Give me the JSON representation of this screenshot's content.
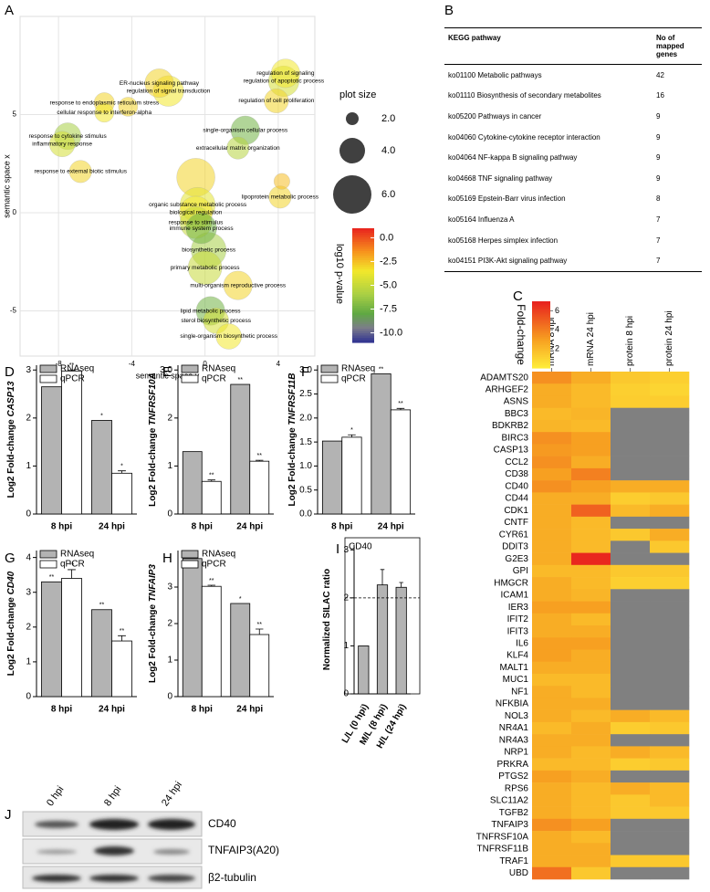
{
  "chart_data": [
    {
      "type": "scatter",
      "panel": "A",
      "xlabel": "semantic space y",
      "ylabel": "semantic space x",
      "xlim": [
        -10.1,
        6
      ],
      "ylim": [
        -7.3,
        10
      ],
      "xticks": [
        -8,
        -4,
        0,
        4
      ],
      "yticks": [
        -5,
        0,
        5
      ],
      "grid": true,
      "x": [
        -2.5,
        -2.0,
        4.4,
        4.3,
        3.9,
        -5.5,
        -5.5,
        -7.5,
        -7.8,
        -6.8,
        2.2,
        1.8,
        4.1,
        -0.4,
        -0.5,
        -0.5,
        -0.2,
        0.2,
        0.0,
        1.8,
        0.3,
        0.6,
        1.3,
        -4.2,
        4.2,
        -0.5
      ],
      "y": [
        6.6,
        6.2,
        7.1,
        6.7,
        5.7,
        5.6,
        5.1,
        3.9,
        3.5,
        2.1,
        4.2,
        3.3,
        0.8,
        0.4,
        0.0,
        -0.5,
        -0.8,
        -1.9,
        -2.8,
        -3.7,
        -5.0,
        -5.5,
        -6.3,
        5.4,
        1.6,
        1.8
      ],
      "sizes": [
        4.5,
        4.8,
        4.5,
        4.8,
        3.8,
        3.2,
        3.0,
        4.2,
        4.0,
        3.5,
        4.5,
        3.5,
        3.5,
        5.5,
        5.2,
        5.0,
        4.8,
        5.5,
        5.3,
        4.5,
        4.5,
        4.0,
        4.0,
        3.0,
        2.5,
        6.0
      ],
      "pvalues": [
        -3,
        -3.5,
        -3.5,
        -4.5,
        -3,
        -3,
        -3.5,
        -6,
        -4.5,
        -3,
        -7.5,
        -5.5,
        -3,
        -4,
        -3.5,
        -5,
        -7.5,
        -6,
        -5,
        -3,
        -7.5,
        -4.5,
        -3.5,
        -3,
        -2.5,
        -3
      ],
      "labels": [
        "ER-nucleus signaling pathway",
        "regulation of signal transduction",
        "regulation of signaling",
        "regulation of apoptotic process",
        "regulation of cell proliferation",
        "response to endoplasmic reticulum stress",
        "cellular response to interferon-alpha",
        "response to cytokine stimulus",
        "inflammatory response",
        "response to external biotic stimulus",
        "single-organism cellular process",
        "extracellular matrix organization",
        "lipoprotein metabolic process",
        "organic substance metabolic process",
        "biological regulation",
        "response to stimulus",
        "immune system process",
        "biosynthetic process",
        "primary metabolic process",
        "multi-organism reproductive process",
        "lipid metabolic process",
        "sterol biosynthetic process",
        "single-organism biosynthetic process",
        null,
        null,
        null
      ],
      "size_legend_title": "plot size",
      "size_ticks": [
        {
          "value": 2,
          "label": "2.0"
        },
        {
          "value": 4,
          "label": "4.0"
        },
        {
          "value": 6,
          "label": "6.0"
        }
      ],
      "color_legend_title": "log10 p-value",
      "clim": [
        1,
        -11
      ],
      "cticks": [
        {
          "value": 0,
          "label": "0.0"
        },
        {
          "value": -2.5,
          "label": "-2.5"
        },
        {
          "value": -5,
          "label": "-5.0"
        },
        {
          "value": -7.5,
          "label": "-7.5"
        },
        {
          "value": -10,
          "label": "-10.0"
        }
      ],
      "colorscale": [
        [
          1,
          "#e8211e"
        ],
        [
          -1.5,
          "#f7941d"
        ],
        [
          -3.5,
          "#f2e82b"
        ],
        [
          -6,
          "#a8cf45"
        ],
        [
          -8,
          "#5fa843"
        ],
        [
          -9.5,
          "#7c7c8a"
        ],
        [
          -11,
          "#2e3192"
        ]
      ]
    },
    {
      "type": "heatmap",
      "panel": "C",
      "colorbar_title": "Fold-change",
      "x": [
        "mRNA 8 hpi",
        "mRNA 24 hpi",
        "protein 8 hpi",
        "protein 24 hpi"
      ],
      "y": [
        "ADAMTS20",
        "ARHGEF2",
        "ASNS",
        "BBC3",
        "BDKRB2",
        "BIRC3",
        "CASP13",
        "CCL2",
        "CD38",
        "CD40",
        "CD44",
        "CDK1",
        "CNTF",
        "CYR61",
        "DDIT3",
        "G2E3",
        "GPI",
        "HMGCR",
        "ICAM1",
        "IER3",
        "IFIT2",
        "IFIT3",
        "IL6",
        "KLF4",
        "MALT1",
        "MUC1",
        "NF1",
        "NFKBIA",
        "NOL3",
        "NR4A1",
        "NR4A3",
        "NRP1",
        "PRKRA",
        "PTGS2",
        "RPS6",
        "SLC11A2",
        "TGFB2",
        "TNFAIP3",
        "TNFRSF10A",
        "TNFRSF11B",
        "TRAF1",
        "UBD"
      ],
      "z": [
        [
          3.5,
          2.5,
          1.5,
          1.2
        ],
        [
          2.5,
          2,
          1.2,
          1.0
        ],
        [
          2.5,
          2,
          1.3,
          1.3
        ],
        [
          2,
          2.2,
          null,
          null
        ],
        [
          2.2,
          2,
          null,
          null
        ],
        [
          3.5,
          3,
          null,
          null
        ],
        [
          3.2,
          3,
          null,
          null
        ],
        [
          3.5,
          2.5,
          null,
          null
        ],
        [
          3,
          4,
          null,
          null
        ],
        [
          3.5,
          3,
          2.5,
          2.5
        ],
        [
          2.5,
          2.5,
          1.3,
          1.5
        ],
        [
          2.5,
          5,
          2,
          2.5
        ],
        [
          2.5,
          2,
          null,
          null
        ],
        [
          2.5,
          2,
          1.5,
          2.5
        ],
        [
          2.5,
          2,
          null,
          1.5
        ],
        [
          2.5,
          6.8,
          null,
          null
        ],
        [
          2,
          2,
          1.5,
          1.5
        ],
        [
          2.5,
          2,
          1.2,
          1.2
        ],
        [
          2.5,
          2.2,
          null,
          null
        ],
        [
          3,
          3,
          null,
          null
        ],
        [
          2.5,
          2,
          null,
          null
        ],
        [
          2.5,
          2.5,
          null,
          null
        ],
        [
          3,
          3,
          null,
          null
        ],
        [
          3,
          2.5,
          null,
          null
        ],
        [
          2.5,
          2.5,
          null,
          null
        ],
        [
          2,
          2,
          null,
          null
        ],
        [
          2.5,
          2,
          null,
          null
        ],
        [
          2.5,
          2.5,
          null,
          null
        ],
        [
          2.5,
          2,
          2.5,
          2
        ],
        [
          2,
          2.5,
          1.3,
          1.5
        ],
        [
          2.5,
          2.5,
          null,
          null
        ],
        [
          2.5,
          2,
          2.5,
          2
        ],
        [
          2,
          2,
          1.3,
          1.5
        ],
        [
          3,
          2.5,
          null,
          null
        ],
        [
          2.5,
          2,
          2.5,
          2
        ],
        [
          2.5,
          2,
          1.5,
          2
        ],
        [
          2.5,
          2,
          1.5,
          1.5
        ],
        [
          3.5,
          3,
          null,
          null
        ],
        [
          2.5,
          2,
          null,
          null
        ],
        [
          2.5,
          2.5,
          null,
          null
        ],
        [
          2.5,
          2.5,
          1.5,
          1.5
        ],
        [
          4.5,
          1.5,
          null,
          null
        ]
      ],
      "clim": [
        0,
        7
      ],
      "cticks": [
        2,
        4,
        6
      ],
      "null_color": "#808080",
      "colorscale": [
        [
          0,
          "#ffef3a"
        ],
        [
          3,
          "#f7a021"
        ],
        [
          7,
          "#e8211e"
        ]
      ]
    },
    {
      "type": "bar",
      "panel": "D",
      "ylabel": "Log2 Fold-change",
      "gene": "CASP13",
      "categories": [
        "8 hpi",
        "24 hpi"
      ],
      "ylim": [
        0,
        3.1
      ],
      "yticks": [
        0,
        1,
        2,
        3
      ],
      "series": [
        {
          "name": "RNAseq",
          "color": "#b3b3b3",
          "values": [
            2.65,
            1.95
          ],
          "annotations": [
            "**",
            "*"
          ]
        },
        {
          "name": "qPCR",
          "color": "#ffffff",
          "values": [
            2.98,
            0.85
          ],
          "errors": [
            0.02,
            0.05
          ],
          "annotations": [
            "**",
            "*"
          ]
        }
      ]
    },
    {
      "type": "bar",
      "panel": "E",
      "ylabel": "Log2 Fold-change",
      "gene": "TNFRSF10A",
      "categories": [
        "8 hpi",
        "24 hpi"
      ],
      "ylim": [
        0,
        3.1
      ],
      "yticks": [
        0,
        1,
        2,
        {
          "value": 3,
          "label": "3.0"
        }
      ],
      "series": [
        {
          "name": "RNAseq",
          "color": "#b3b3b3",
          "values": [
            1.3,
            2.7
          ],
          "annotations": [
            null,
            "**"
          ]
        },
        {
          "name": "qPCR",
          "color": "#ffffff",
          "values": [
            0.68,
            1.1
          ],
          "errors": [
            0.03,
            0.02
          ],
          "annotations": [
            "**",
            "**"
          ]
        }
      ]
    },
    {
      "type": "bar",
      "panel": "F",
      "ylabel": "Log2 Fold-change",
      "gene": "TNFRSF11B",
      "categories": [
        "8 hpi",
        "24 hpi"
      ],
      "ylim": [
        0,
        3.1
      ],
      "yticks": [
        {
          "value": 0,
          "label": "0.0"
        },
        {
          "value": 0.5,
          "label": "0.5"
        },
        {
          "value": 1,
          "label": "1.0"
        },
        {
          "value": 1.5,
          "label": "1.5"
        },
        {
          "value": 2,
          "label": "2.0"
        },
        {
          "value": 2.5,
          "label": "2.5"
        },
        {
          "value": 3,
          "label": "3.0"
        }
      ],
      "series": [
        {
          "name": "RNAseq",
          "color": "#b3b3b3",
          "values": [
            1.52,
            2.92
          ],
          "annotations": [
            null,
            "**"
          ]
        },
        {
          "name": "qPCR",
          "color": "#ffffff",
          "values": [
            1.6,
            2.17
          ],
          "errors": [
            0.05,
            0.03
          ],
          "annotations": [
            "*",
            "**"
          ]
        }
      ]
    },
    {
      "type": "bar",
      "panel": "G",
      "ylabel": "Log2 Fold-change",
      "gene": "CD40",
      "categories": [
        "8 hpi",
        "24 hpi"
      ],
      "ylim": [
        0,
        4.2
      ],
      "yticks": [
        0,
        1,
        2,
        3,
        4
      ],
      "series": [
        {
          "name": "RNAseq",
          "color": "#b3b3b3",
          "values": [
            3.3,
            2.5
          ],
          "annotations": [
            "**",
            "**"
          ]
        },
        {
          "name": "qPCR",
          "color": "#ffffff",
          "values": [
            3.4,
            1.6
          ],
          "errors": [
            0.25,
            0.15
          ],
          "annotations": [
            "**",
            "**"
          ]
        }
      ]
    },
    {
      "type": "bar",
      "panel": "H",
      "ylabel": "Log2 Fold-change",
      "gene": "TNFAIP3",
      "categories": [
        "8 hpi",
        "24 hpi"
      ],
      "ylim": [
        0,
        4.0
      ],
      "yticks": [
        0,
        1,
        2,
        3
      ],
      "series": [
        {
          "name": "RNAseq",
          "color": "#b3b3b3",
          "values": [
            3.78,
            2.55
          ],
          "annotations": [
            "**",
            "*"
          ]
        },
        {
          "name": "qPCR",
          "color": "#ffffff",
          "values": [
            3.02,
            1.7
          ],
          "errors": [
            0.03,
            0.15
          ],
          "annotations": [
            "**",
            "**"
          ]
        }
      ]
    },
    {
      "type": "bar",
      "panel": "I",
      "title": "CD40",
      "ylabel": "Normalized SILAC ratio",
      "categories": [
        "L/L (0 hpi)",
        "M/L (8 hpi)",
        "H/L (24 hpi)"
      ],
      "ylim": [
        0,
        3.1
      ],
      "yticks": [
        0,
        1,
        2,
        3
      ],
      "hline": 2,
      "series": [
        {
          "color": "#b3b3b3",
          "values": [
            1.0,
            2.27,
            2.22
          ],
          "errors": [
            null,
            0.32,
            0.1
          ]
        }
      ]
    }
  ],
  "table": {
    "panel": "B",
    "header": [
      "KEGG pathway",
      "No of mapped genes"
    ],
    "rows": [
      [
        "ko01100 Metabolic pathways",
        "42"
      ],
      [
        "ko01110 Biosynthesis of secondary metabolites",
        "16"
      ],
      [
        "ko05200 Pathways in cancer",
        "9"
      ],
      [
        "ko04060 Cytokine-cytokine receptor interaction",
        "9"
      ],
      [
        "ko04064 NF-kappa B signaling pathway",
        "9"
      ],
      [
        "ko04668 TNF signaling pathway",
        "9"
      ],
      [
        "ko05169 Epstein-Barr virus infection",
        "8"
      ],
      [
        "ko05164 Influenza A",
        "7"
      ],
      [
        "ko05168 Herpes simplex infection",
        "7"
      ],
      [
        "ko04151 PI3K-Akt signaling pathway",
        "7"
      ]
    ]
  },
  "blot": {
    "panel": "J",
    "lanes": [
      "0 hpi",
      "8 hpi",
      "24 hpi"
    ],
    "bands": [
      "CD40",
      "TNFAIP3(A20)",
      "β2-tubulin"
    ]
  }
}
